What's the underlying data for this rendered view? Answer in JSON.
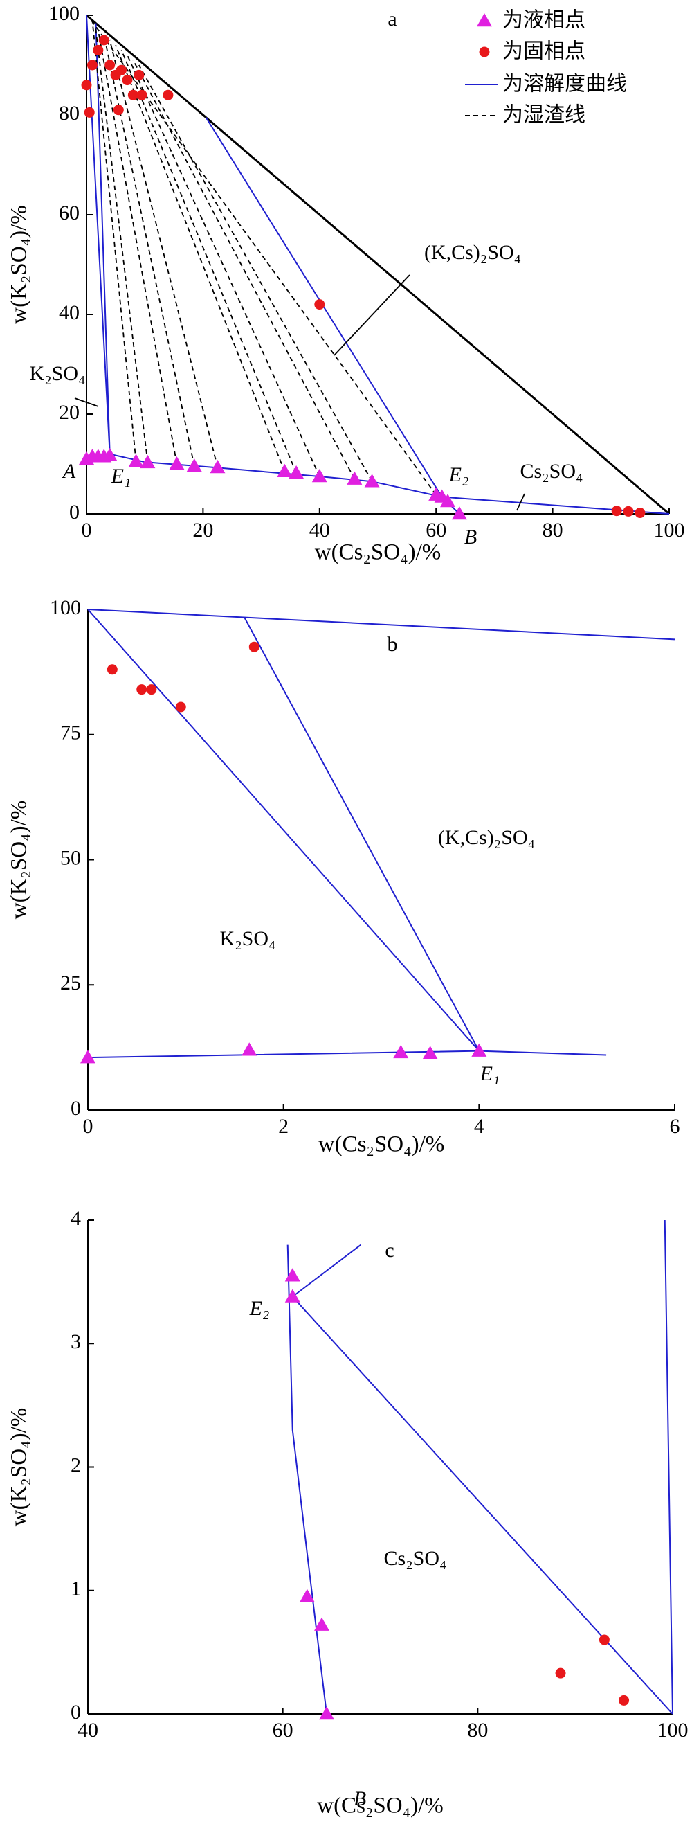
{
  "chart_data": [
    {
      "type": "phase",
      "title": "a",
      "x_label": "w(Cs₂SO₄)/%",
      "y_label": "w(K₂SO₄)/%",
      "xlim": [
        0,
        100
      ],
      "ylim": [
        0,
        100
      ],
      "xticks": [
        0,
        20,
        40,
        60,
        80,
        100
      ],
      "yticks": [
        0,
        20,
        40,
        60,
        80,
        100
      ],
      "diagonal_color": "#000000",
      "legend": "upper right",
      "annotations": [
        "(K,Cs)₂SO₄",
        "K₂SO₄",
        "A",
        "E₁",
        "E₂",
        "B",
        "Cs₂SO₄"
      ],
      "series": [
        {
          "name": "为液相点",
          "color": "#e020e0",
          "marker": "triangle",
          "x": [
            0,
            1,
            2,
            3,
            4,
            8.5,
            10.5,
            15.5,
            18.5,
            22.5,
            34,
            36,
            40,
            46,
            49,
            60,
            61,
            62,
            64
          ],
          "values": [
            11,
            11.5,
            11.5,
            11.5,
            11.7,
            10.5,
            10.3,
            10,
            9.6,
            9.3,
            8.5,
            8.2,
            7.5,
            7,
            6.5,
            3.8,
            3.4,
            2.5,
            0
          ]
        },
        {
          "name": "为固相点",
          "color": "#e8181b",
          "marker": "circle",
          "x": [
            0,
            1,
            0.5,
            2,
            3,
            4,
            5,
            5.5,
            6,
            7,
            8,
            9,
            9.5,
            14,
            40,
            91,
            93,
            95
          ],
          "values": [
            86,
            90,
            80.5,
            93,
            95,
            90,
            88,
            81,
            89,
            87,
            84,
            88,
            84,
            84,
            42,
            0.6,
            0.5,
            0.2
          ]
        },
        {
          "name": "为溶解度曲线",
          "color": "#2020d0",
          "x": [
            0,
            4,
            10,
            22,
            40,
            49,
            61,
            100,
            null,
            0,
            4,
            null,
            1.6,
            4,
            null,
            20.5,
            61,
            null,
            61,
            64
          ],
          "values": [
            11,
            12,
            10.4,
            9.3,
            7.5,
            6.5,
            3.4,
            0,
            null,
            100,
            12,
            null,
            98.4,
            12,
            null,
            79.5,
            3.4,
            null,
            3.4,
            0
          ]
        },
        {
          "name": "为湿渣线",
          "color": "#000000",
          "dash": true,
          "x": [
            8.5,
            1,
            null,
            10.5,
            1.5,
            null,
            15.5,
            2,
            null,
            18.5,
            3,
            null,
            22.5,
            4,
            null,
            34,
            5,
            null,
            36,
            6,
            null,
            40,
            7,
            null,
            46,
            8,
            null,
            49,
            9,
            null,
            60,
            0.5
          ],
          "values": [
            10.5,
            99,
            null,
            10.3,
            98,
            null,
            10,
            97,
            null,
            9.6,
            96,
            null,
            9.3,
            95,
            null,
            8.5,
            94,
            null,
            8.2,
            93,
            null,
            7.5,
            92,
            null,
            7,
            91,
            null,
            6.5,
            90,
            null,
            3.8,
            99.5
          ]
        }
      ]
    },
    {
      "type": "phase",
      "title": "b",
      "x_label": "w(Cs₂SO₄)/%",
      "y_label": "w(K₂SO₄)/%",
      "xlim": [
        0,
        6
      ],
      "ylim": [
        0,
        100
      ],
      "xticks": [
        0,
        2,
        4,
        6
      ],
      "yticks": [
        0,
        25,
        50,
        75,
        100
      ],
      "diagonal_color": "#2020d0",
      "annotations": [
        "(K,Cs)₂SO₄",
        "K₂SO₄",
        "E₁"
      ],
      "series": [
        {
          "color": "#e020e0",
          "marker": "triangle",
          "x": [
            0,
            1.65,
            3.2,
            3.5,
            4
          ],
          "values": [
            10.5,
            12,
            11.5,
            11.3,
            11.8
          ]
        },
        {
          "color": "#e8181b",
          "marker": "circle",
          "x": [
            0.25,
            0.55,
            0.65,
            0.95,
            1.7
          ],
          "values": [
            88,
            84,
            84,
            80.5,
            92.5
          ]
        },
        {
          "color": "#2020d0",
          "x": [
            0,
            4,
            5.3,
            null,
            0,
            4,
            null,
            1.6,
            4
          ],
          "values": [
            10.5,
            11.8,
            11,
            null,
            100,
            11.8,
            null,
            98.4,
            11.8
          ]
        }
      ]
    },
    {
      "type": "phase",
      "title": "c",
      "x_label": "w(Cs₂SO₄)/%",
      "y_label": "w(K₂SO₄)/%",
      "xlim": [
        40,
        100
      ],
      "ylim": [
        0,
        4
      ],
      "xticks": [
        40,
        60,
        80,
        100
      ],
      "yticks": [
        0,
        1,
        2,
        3,
        4
      ],
      "annotations": [
        "E₂",
        "B",
        "Cs₂SO₄"
      ],
      "series": [
        {
          "color": "#e020e0",
          "marker": "triangle",
          "x": [
            61,
            61,
            62.5,
            64,
            64.5
          ],
          "values": [
            3.55,
            3.38,
            0.95,
            0.72,
            0
          ]
        },
        {
          "color": "#e8181b",
          "marker": "circle",
          "x": [
            88.5,
            93,
            95
          ],
          "values": [
            0.33,
            0.6,
            0.11
          ]
        },
        {
          "color": "#2020d0",
          "x": [
            60.5,
            61,
            62.5,
            64.5,
            null,
            61,
            68,
            null,
            61,
            100,
            null,
            100,
            99.2
          ],
          "values": [
            3.8,
            2.3,
            1.3,
            0,
            null,
            3.38,
            3.8,
            null,
            3.38,
            0,
            null,
            0,
            4
          ]
        }
      ]
    }
  ]
}
